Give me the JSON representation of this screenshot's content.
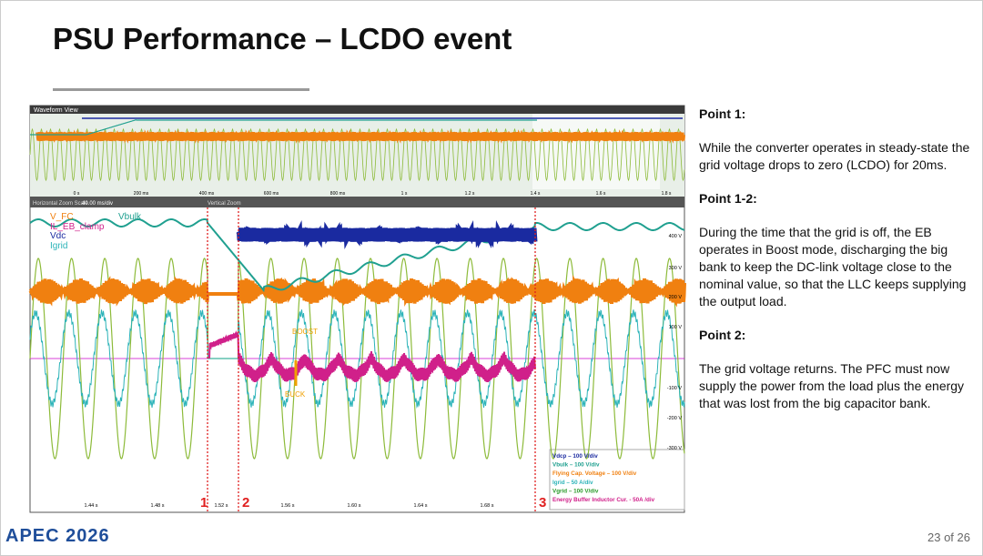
{
  "header": {
    "title": "PSU Performance – LCDO event"
  },
  "scope": {
    "window_title": "Waveform View",
    "overview_time_labels": [
      "0 s",
      "200 ms",
      "400 ms",
      "600 ms",
      "800 ms",
      "1 s",
      "1.2 s",
      "1.4 s",
      "1.6 s",
      "1.8 s"
    ],
    "zoom_bar": [
      "Horizontal Zoom Scale",
      "40.00 ms/div",
      "Vertical Zoom"
    ],
    "time_labels": [
      "1.44 s",
      "1.48 s",
      "1.52 s",
      "1.56 s",
      "1.60 s",
      "1.64 s",
      "1.68 s"
    ],
    "voltage_labels": [
      "400 V",
      "300 V",
      "200 V",
      "100 V",
      "-100 V",
      "-200 V",
      "-300 V"
    ],
    "trace_labels": [
      "V_FC",
      "Vbulk",
      "IL_EB_clamp",
      "Vdc",
      "Igrid"
    ],
    "annotations": [
      "BOOST",
      "BUCK"
    ],
    "markers": [
      "1",
      "2",
      "3"
    ],
    "legend": [
      "Vdcp – 100 V/div",
      "Vbulk – 100 V/div",
      "Flying Cap. Voltage – 100 V/div",
      "Igrid – 50 A/div",
      "Vgrid – 100 V/div",
      "Energy Buffer Inductor Cur. -  50A /div"
    ]
  },
  "points": [
    {
      "heading": "Point 1:",
      "text": "While the converter operates in steady-state the grid voltage drops to zero (LCDO) for 20ms."
    },
    {
      "heading": "Point 1-2:",
      "text": "During the time that the grid is off, the EB operates in Boost mode, discharging the big bank to keep the DC-link voltage close to the nominal value, so that the LLC keeps supplying the output load."
    },
    {
      "heading": "Point 2:",
      "text": "The grid voltage returns. The PFC must now supply the power from the load plus the energy that was lost from the big capacitor bank."
    }
  ],
  "footer": {
    "logo": "APEC 2026",
    "page": "23 of 26"
  }
}
